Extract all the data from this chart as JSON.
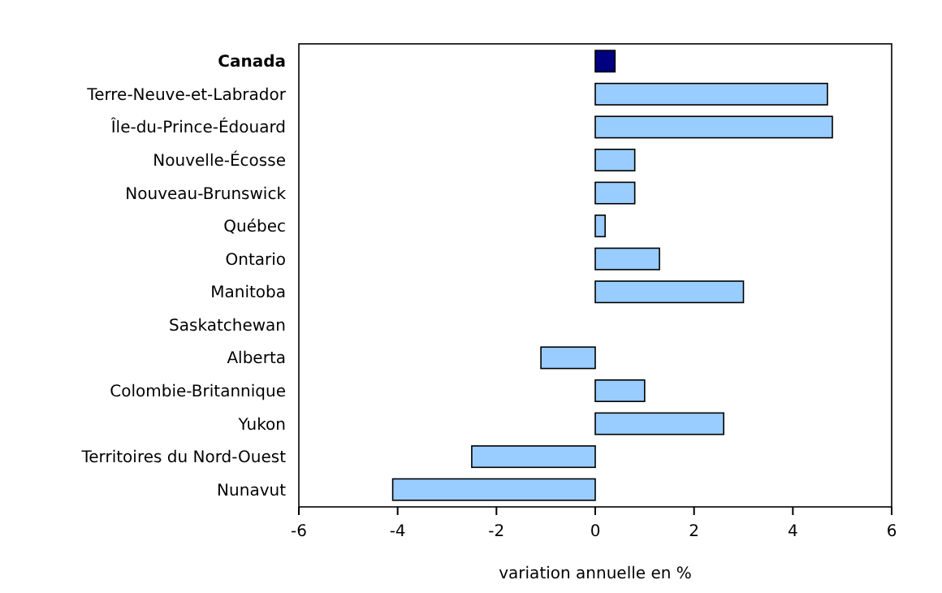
{
  "chart_data": {
    "type": "bar",
    "orientation": "horizontal",
    "xlabel": "variation annuelle en %",
    "categories": [
      "Canada",
      "Terre-Neuve-et-Labrador",
      "Île-du-Prince-Édouard",
      "Nouvelle-Écosse",
      "Nouveau-Brunswick",
      "Québec",
      "Ontario",
      "Manitoba",
      "Saskatchewan",
      "Alberta",
      "Colombie-Britannique",
      "Yukon",
      "Territoires du Nord-Ouest",
      "Nunavut"
    ],
    "values": [
      0.4,
      4.7,
      4.8,
      0.8,
      0.8,
      0.2,
      1.3,
      3.0,
      0,
      -1.1,
      1.0,
      2.6,
      -2.5,
      -4.1
    ],
    "colors": [
      "#000080",
      "#99ccff",
      "#99ccff",
      "#99ccff",
      "#99ccff",
      "#99ccff",
      "#99ccff",
      "#99ccff",
      "#99ccff",
      "#99ccff",
      "#99ccff",
      "#99ccff",
      "#99ccff",
      "#99ccff"
    ],
    "xlim": [
      -6,
      6
    ],
    "xticks": [
      -6,
      -4,
      -2,
      0,
      2,
      4,
      6
    ],
    "grid": false
  }
}
